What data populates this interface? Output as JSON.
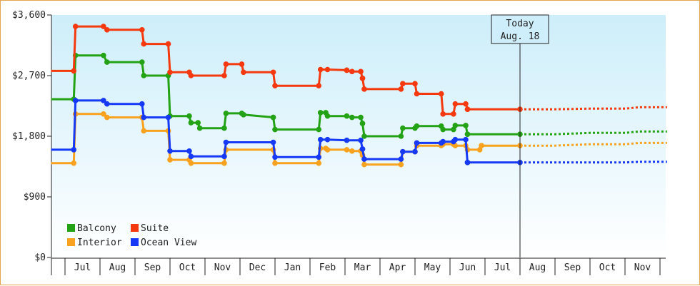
{
  "chart_data": {
    "type": "line",
    "step": true,
    "x_tick_labels": [
      "Jul",
      "Aug",
      "Sep",
      "Oct",
      "Nov",
      "Dec",
      "Jan",
      "Feb",
      "Mar",
      "Apr",
      "May",
      "Jun",
      "Jul",
      "Aug",
      "Sep",
      "Oct",
      "Nov"
    ],
    "y_tick_labels": [
      "$0",
      "$900",
      "$1,800",
      "$2,700",
      "$3,600"
    ],
    "ylim": [
      0,
      3600
    ],
    "y_ticks": [
      0,
      900,
      1800,
      2700,
      3600
    ],
    "today": {
      "line1": "Today",
      "line2": "Aug. 18",
      "month_index": 13.0
    },
    "background": {
      "top": "#cdeefa",
      "bottom": "#ffffff"
    },
    "legend_placement": "bottom-left",
    "series": [
      {
        "name": "Balcony",
        "color": "#22a214",
        "points": [
          [
            -0.4,
            2350
          ],
          [
            0.2,
            2350
          ],
          [
            0.25,
            2350
          ],
          [
            0.3,
            3000
          ],
          [
            1.1,
            3000
          ],
          [
            1.2,
            2900
          ],
          [
            1.45,
            2900
          ],
          [
            2.2,
            2900
          ],
          [
            2.25,
            2700
          ],
          [
            2.95,
            2700
          ],
          [
            3.0,
            2100
          ],
          [
            3.55,
            2100
          ],
          [
            3.6,
            2000
          ],
          [
            3.8,
            2000
          ],
          [
            3.85,
            1920
          ],
          [
            4.55,
            1920
          ],
          [
            4.6,
            2140
          ],
          [
            5.05,
            2140
          ],
          [
            5.1,
            2120
          ],
          [
            5.95,
            2080
          ],
          [
            6.0,
            1900
          ],
          [
            7.25,
            1900
          ],
          [
            7.3,
            2150
          ],
          [
            7.45,
            2150
          ],
          [
            7.5,
            2100
          ],
          [
            8.05,
            2100
          ],
          [
            8.2,
            2080
          ],
          [
            8.45,
            2080
          ],
          [
            8.5,
            1990
          ],
          [
            8.55,
            1800
          ],
          [
            9.6,
            1800
          ],
          [
            9.65,
            1920
          ],
          [
            10.0,
            1920
          ],
          [
            10.05,
            1950
          ],
          [
            10.75,
            1950
          ],
          [
            10.8,
            1900
          ],
          [
            11.1,
            1900
          ],
          [
            11.15,
            1960
          ],
          [
            11.45,
            1960
          ],
          [
            11.5,
            1830
          ],
          [
            13.0,
            1830
          ]
        ],
        "projection": [
          [
            13.0,
            1830
          ],
          [
            14.0,
            1830
          ],
          [
            15.0,
            1850
          ],
          [
            16.0,
            1850
          ],
          [
            16.4,
            1870
          ],
          [
            17.2,
            1870
          ]
        ]
      },
      {
        "name": "Suite",
        "color": "#f5390f",
        "points": [
          [
            -0.4,
            2770
          ],
          [
            0.2,
            2770
          ],
          [
            0.25,
            2770
          ],
          [
            0.3,
            3430
          ],
          [
            1.1,
            3430
          ],
          [
            1.2,
            3380
          ],
          [
            1.45,
            3380
          ],
          [
            2.2,
            3380
          ],
          [
            2.25,
            3170
          ],
          [
            2.95,
            3170
          ],
          [
            3.0,
            2750
          ],
          [
            3.55,
            2750
          ],
          [
            3.6,
            2700
          ],
          [
            4.55,
            2700
          ],
          [
            4.6,
            2870
          ],
          [
            5.05,
            2870
          ],
          [
            5.1,
            2750
          ],
          [
            5.95,
            2750
          ],
          [
            6.0,
            2550
          ],
          [
            7.25,
            2550
          ],
          [
            7.3,
            2790
          ],
          [
            7.45,
            2790
          ],
          [
            7.5,
            2790
          ],
          [
            8.05,
            2780
          ],
          [
            8.2,
            2760
          ],
          [
            8.45,
            2760
          ],
          [
            8.5,
            2660
          ],
          [
            8.55,
            2500
          ],
          [
            9.6,
            2500
          ],
          [
            9.65,
            2580
          ],
          [
            10.0,
            2580
          ],
          [
            10.05,
            2430
          ],
          [
            10.75,
            2430
          ],
          [
            10.8,
            2130
          ],
          [
            11.1,
            2130
          ],
          [
            11.15,
            2280
          ],
          [
            11.45,
            2280
          ],
          [
            11.5,
            2200
          ],
          [
            13.0,
            2200
          ]
        ],
        "projection": [
          [
            13.0,
            2200
          ],
          [
            14.0,
            2200
          ],
          [
            15.0,
            2210
          ],
          [
            16.0,
            2210
          ],
          [
            16.4,
            2230
          ],
          [
            17.2,
            2230
          ]
        ]
      },
      {
        "name": "Interior",
        "color": "#f8a21f",
        "points": [
          [
            -0.4,
            1400
          ],
          [
            0.2,
            1400
          ],
          [
            0.25,
            1400
          ],
          [
            0.3,
            2130
          ],
          [
            1.1,
            2130
          ],
          [
            1.2,
            2080
          ],
          [
            1.45,
            2080
          ],
          [
            2.2,
            2080
          ],
          [
            2.25,
            1880
          ],
          [
            2.95,
            1880
          ],
          [
            3.0,
            1450
          ],
          [
            3.55,
            1450
          ],
          [
            3.6,
            1400
          ],
          [
            4.55,
            1400
          ],
          [
            4.6,
            1600
          ],
          [
            5.05,
            1600
          ],
          [
            5.1,
            1600
          ],
          [
            5.95,
            1600
          ],
          [
            6.0,
            1400
          ],
          [
            7.25,
            1400
          ],
          [
            7.3,
            1620
          ],
          [
            7.45,
            1620
          ],
          [
            7.5,
            1600
          ],
          [
            8.05,
            1600
          ],
          [
            8.2,
            1580
          ],
          [
            8.45,
            1580
          ],
          [
            8.5,
            1520
          ],
          [
            8.55,
            1380
          ],
          [
            9.6,
            1380
          ],
          [
            9.65,
            1570
          ],
          [
            10.0,
            1570
          ],
          [
            10.05,
            1660
          ],
          [
            10.75,
            1660
          ],
          [
            10.8,
            1680
          ],
          [
            11.1,
            1680
          ],
          [
            11.15,
            1660
          ],
          [
            11.45,
            1660
          ],
          [
            11.5,
            1600
          ],
          [
            11.85,
            1600
          ],
          [
            11.9,
            1660
          ],
          [
            13.0,
            1660
          ]
        ],
        "projection": [
          [
            13.0,
            1660
          ],
          [
            14.0,
            1660
          ],
          [
            15.0,
            1680
          ],
          [
            16.0,
            1680
          ],
          [
            16.4,
            1700
          ],
          [
            17.2,
            1700
          ]
        ]
      },
      {
        "name": "Ocean View",
        "color": "#1539f5",
        "points": [
          [
            -0.4,
            1600
          ],
          [
            0.2,
            1600
          ],
          [
            0.25,
            1600
          ],
          [
            0.3,
            2330
          ],
          [
            1.1,
            2330
          ],
          [
            1.2,
            2280
          ],
          [
            1.45,
            2280
          ],
          [
            2.2,
            2280
          ],
          [
            2.25,
            2080
          ],
          [
            2.95,
            2080
          ],
          [
            3.0,
            1580
          ],
          [
            3.55,
            1580
          ],
          [
            3.6,
            1500
          ],
          [
            4.55,
            1500
          ],
          [
            4.6,
            1710
          ],
          [
            5.05,
            1710
          ],
          [
            5.1,
            1710
          ],
          [
            5.95,
            1710
          ],
          [
            6.0,
            1490
          ],
          [
            7.25,
            1490
          ],
          [
            7.3,
            1750
          ],
          [
            7.45,
            1750
          ],
          [
            7.5,
            1750
          ],
          [
            8.05,
            1740
          ],
          [
            8.2,
            1740
          ],
          [
            8.45,
            1740
          ],
          [
            8.5,
            1610
          ],
          [
            8.55,
            1460
          ],
          [
            9.6,
            1460
          ],
          [
            9.65,
            1570
          ],
          [
            10.0,
            1570
          ],
          [
            10.05,
            1700
          ],
          [
            10.75,
            1700
          ],
          [
            10.8,
            1720
          ],
          [
            11.1,
            1720
          ],
          [
            11.15,
            1750
          ],
          [
            11.45,
            1750
          ],
          [
            11.5,
            1410
          ],
          [
            13.0,
            1410
          ]
        ],
        "projection": [
          [
            13.0,
            1410
          ],
          [
            14.0,
            1410
          ],
          [
            15.0,
            1410
          ],
          [
            16.0,
            1410
          ],
          [
            16.4,
            1420
          ],
          [
            17.2,
            1420
          ]
        ]
      }
    ]
  }
}
